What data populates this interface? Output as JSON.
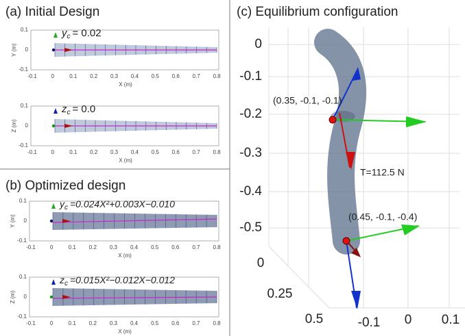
{
  "panels": [
    {
      "title": "(a) Initial Design",
      "plots": [
        {
          "symbol": "y",
          "subscript": "c",
          "expression": "= 0.02",
          "ylabel": "Y (m)",
          "xlabel": "X (m)",
          "yticks": [
            "0.1",
            "0",
            "-0.1"
          ],
          "xticks": [
            "-0.1",
            "0",
            "0.1",
            "0.2",
            "0.3",
            "0.4",
            "0.5",
            "0.6",
            "0.7",
            "0.8"
          ]
        },
        {
          "symbol": "z",
          "subscript": "c",
          "expression": "= 0.0",
          "ylabel": "Z (m)",
          "xlabel": "X (m)",
          "yticks": [
            "0.1",
            "0",
            "-0.1"
          ],
          "xticks": [
            "-0.1",
            "0",
            "0.1",
            "0.2",
            "0.3",
            "0.4",
            "0.5",
            "0.6",
            "0.7",
            "0.8"
          ]
        }
      ]
    },
    {
      "title": "(b) Optimized design",
      "plots": [
        {
          "symbol": "y",
          "subscript": "c",
          "expression": "=0.024X²+0.003X−0.010",
          "ylabel": "Y (m)",
          "xlabel": "X (m)",
          "yticks": [
            "0.1",
            "0",
            "-0.1"
          ],
          "xticks": [
            "-0.1",
            "0",
            "0.1",
            "0.2",
            "0.3",
            "0.4",
            "0.5",
            "0.6",
            "0.7",
            "0.8"
          ]
        },
        {
          "symbol": "z",
          "subscript": "c",
          "expression": "=0.015X²−0.012X−0.012",
          "ylabel": "Z (m)",
          "xlabel": "X (m)",
          "yticks": [
            "0.1",
            "0",
            "-0.1"
          ],
          "xticks": [
            "-0.1",
            "0",
            "0.1",
            "0.2",
            "0.3",
            "0.4",
            "0.5",
            "0.6",
            "0.7",
            "0.8"
          ]
        }
      ]
    }
  ],
  "equilibrium": {
    "title": "(c) Equilibrium configuration",
    "zticks": [
      "0",
      "-0.1",
      "-0.2",
      "-0.3",
      "-0.4",
      "-0.5"
    ],
    "yticks": [
      "0",
      "0.25",
      "0.5"
    ],
    "xticks": [
      "-0.1",
      "0",
      "0.1"
    ],
    "annotations": [
      "(0.35, -0.1, -0.1)",
      "T=112.5 N",
      "(0.45, -0.1, -0.4)"
    ]
  }
}
